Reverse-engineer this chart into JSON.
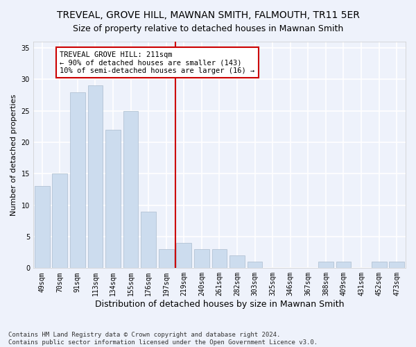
{
  "title": "TREVEAL, GROVE HILL, MAWNAN SMITH, FALMOUTH, TR11 5ER",
  "subtitle": "Size of property relative to detached houses in Mawnan Smith",
  "xlabel": "Distribution of detached houses by size in Mawnan Smith",
  "ylabel": "Number of detached properties",
  "categories": [
    "49sqm",
    "70sqm",
    "91sqm",
    "113sqm",
    "134sqm",
    "155sqm",
    "176sqm",
    "197sqm",
    "219sqm",
    "240sqm",
    "261sqm",
    "282sqm",
    "303sqm",
    "325sqm",
    "346sqm",
    "367sqm",
    "388sqm",
    "409sqm",
    "431sqm",
    "452sqm",
    "473sqm"
  ],
  "values": [
    13,
    15,
    28,
    29,
    22,
    25,
    9,
    3,
    4,
    3,
    3,
    2,
    1,
    0,
    0,
    0,
    1,
    1,
    0,
    1,
    1
  ],
  "bar_color": "#ccdcee",
  "bar_edgecolor": "#aabcce",
  "bar_linewidth": 0.5,
  "background_color": "#eef2fb",
  "grid_color": "#ffffff",
  "red_line_color": "#cc0000",
  "annotation_box_text": "TREVEAL GROVE HILL: 211sqm\n← 90% of detached houses are smaller (143)\n10% of semi-detached houses are larger (16) →",
  "ylim": [
    0,
    36
  ],
  "yticks": [
    0,
    5,
    10,
    15,
    20,
    25,
    30,
    35
  ],
  "footnote": "Contains HM Land Registry data © Crown copyright and database right 2024.\nContains public sector information licensed under the Open Government Licence v3.0.",
  "title_fontsize": 10,
  "subtitle_fontsize": 9,
  "xlabel_fontsize": 9,
  "ylabel_fontsize": 8,
  "tick_fontsize": 7,
  "annot_fontsize": 7.5,
  "footnote_fontsize": 6.5
}
